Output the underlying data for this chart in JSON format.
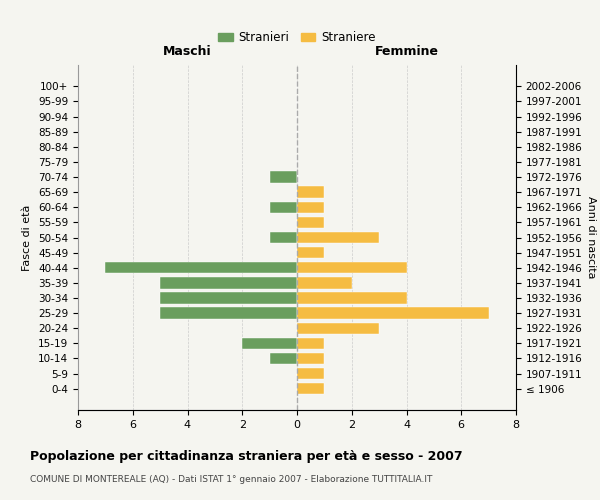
{
  "age_groups": [
    "100+",
    "95-99",
    "90-94",
    "85-89",
    "80-84",
    "75-79",
    "70-74",
    "65-69",
    "60-64",
    "55-59",
    "50-54",
    "45-49",
    "40-44",
    "35-39",
    "30-34",
    "25-29",
    "20-24",
    "15-19",
    "10-14",
    "5-9",
    "0-4"
  ],
  "birth_years": [
    "≤ 1906",
    "1907-1911",
    "1912-1916",
    "1917-1921",
    "1922-1926",
    "1927-1931",
    "1932-1936",
    "1937-1941",
    "1942-1946",
    "1947-1951",
    "1952-1956",
    "1957-1961",
    "1962-1966",
    "1967-1971",
    "1972-1976",
    "1977-1981",
    "1982-1986",
    "1987-1991",
    "1992-1996",
    "1997-2001",
    "2002-2006"
  ],
  "males": [
    0,
    0,
    0,
    0,
    0,
    0,
    1,
    0,
    1,
    0,
    1,
    0,
    7,
    5,
    5,
    5,
    0,
    2,
    1,
    0,
    0
  ],
  "females": [
    0,
    0,
    0,
    0,
    0,
    0,
    0,
    1,
    1,
    1,
    3,
    1,
    4,
    2,
    4,
    7,
    3,
    1,
    1,
    1,
    1
  ],
  "male_color": "#6a9e5e",
  "female_color": "#f5bc42",
  "title": "Popolazione per cittadinanza straniera per età e sesso - 2007",
  "subtitle": "COMUNE DI MONTEREALE (AQ) - Dati ISTAT 1° gennaio 2007 - Elaborazione TUTTITALIA.IT",
  "xlabel_left": "Maschi",
  "xlabel_right": "Femmine",
  "ylabel_left": "Fasce di età",
  "ylabel_right": "Anni di nascita",
  "legend_male": "Stranieri",
  "legend_female": "Straniere",
  "xlim": 8,
  "background_color": "#f5f5f0",
  "grid_color": "#cccccc",
  "bar_height": 0.75
}
